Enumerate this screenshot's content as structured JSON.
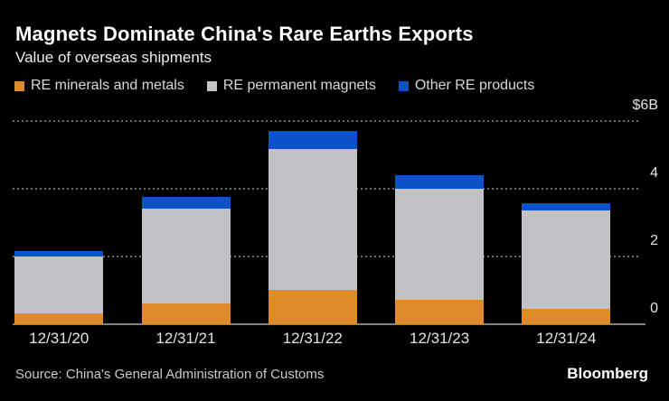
{
  "header": {
    "title": "Magnets Dominate China's Rare Earths Exports",
    "subtitle": "Value of overseas shipments"
  },
  "legend": [
    {
      "label": "RE minerals and metals",
      "color": "#DD8C29"
    },
    {
      "label": "RE permanent magnets",
      "color": "#C2C2C4"
    },
    {
      "label": "Other RE products",
      "color": "#0C52C8"
    }
  ],
  "chart_data": {
    "type": "bar",
    "stacked": true,
    "title": "Magnets Dominate China's Rare Earths Exports",
    "subtitle": "Value of overseas shipments",
    "unit": "billions of US dollars",
    "categories": [
      "12/31/20",
      "12/31/21",
      "12/31/22",
      "12/31/23",
      "12/31/24"
    ],
    "series": [
      {
        "name": "RE minerals and metals",
        "color": "#DD8C29",
        "values": [
          0.3,
          0.6,
          1.0,
          0.7,
          0.45
        ]
      },
      {
        "name": "RE permanent magnets",
        "color": "#C2C2C4",
        "values": [
          1.7,
          2.8,
          4.15,
          3.3,
          2.9
        ]
      },
      {
        "name": "Other RE products",
        "color": "#0C52C8",
        "values": [
          0.15,
          0.35,
          0.55,
          0.4,
          0.2
        ]
      }
    ],
    "totals": [
      2.15,
      3.75,
      5.7,
      4.4,
      3.55
    ],
    "xlabel": "",
    "ylabel": "",
    "ylim": [
      0,
      6
    ],
    "yticks": [
      {
        "value": 6,
        "label": "$6B"
      },
      {
        "value": 4,
        "label": "4"
      },
      {
        "value": 2,
        "label": "2"
      },
      {
        "value": 0,
        "label": "0"
      }
    ],
    "grid": "horizontal-dotted",
    "legend_position": "top",
    "background": "#000000"
  },
  "footer": {
    "source": "Source: China's General Administration of Customs",
    "brand": "Bloomberg"
  }
}
